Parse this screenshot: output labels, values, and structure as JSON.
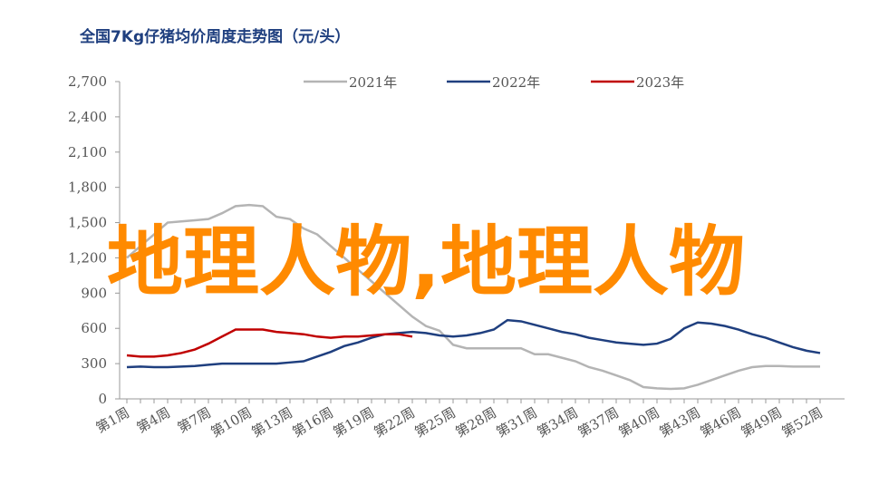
{
  "chart_data": {
    "type": "line",
    "title": "全国7Kg仔猪均价周度走势图（元/头）",
    "annotation": "地理人物,地理人物",
    "categories": [
      "第1周",
      null,
      null,
      "第4周",
      null,
      null,
      "第7周",
      null,
      null,
      "第10周",
      null,
      null,
      "第13周",
      null,
      null,
      "第16周",
      null,
      null,
      "第19周",
      null,
      null,
      "第22周",
      null,
      null,
      "第25周",
      null,
      null,
      "第28周",
      null,
      null,
      "第31周",
      null,
      null,
      "第34周",
      null,
      null,
      "第37周",
      null,
      null,
      "第40周",
      null,
      null,
      "第43周",
      null,
      null,
      "第46周",
      null,
      null,
      "第49周",
      null,
      null,
      "第52周"
    ],
    "series": [
      {
        "name": "2021年",
        "color": "#b4b4b4",
        "values": [
          1200,
          1300,
          1400,
          1500,
          1510,
          1520,
          1530,
          1580,
          1640,
          1650,
          1640,
          1550,
          1530,
          1450,
          1400,
          1300,
          1200,
          1100,
          1000,
          900,
          800,
          700,
          620,
          580,
          460,
          430,
          430,
          430,
          430,
          430,
          380,
          380,
          350,
          320,
          270,
          240,
          200,
          160,
          100,
          90,
          85,
          90,
          120,
          160,
          200,
          240,
          270,
          280,
          280,
          275,
          275,
          275
        ]
      },
      {
        "name": "2022年",
        "color": "#1f3f7f",
        "values": [
          270,
          275,
          270,
          270,
          275,
          280,
          290,
          300,
          300,
          300,
          300,
          300,
          310,
          320,
          360,
          400,
          450,
          480,
          520,
          550,
          560,
          570,
          560,
          540,
          530,
          540,
          560,
          590,
          670,
          660,
          630,
          600,
          570,
          550,
          520,
          500,
          480,
          470,
          460,
          470,
          510,
          600,
          650,
          640,
          620,
          590,
          550,
          520,
          480,
          440,
          410,
          390
        ]
      },
      {
        "name": "2023年",
        "color": "#c00000",
        "values": [
          370,
          360,
          360,
          370,
          390,
          420,
          470,
          530,
          590,
          590,
          590,
          570,
          560,
          550,
          530,
          520,
          530,
          530,
          540,
          550,
          550,
          530,
          null,
          null,
          null,
          null,
          null,
          null,
          null,
          null,
          null,
          null,
          null,
          null,
          null,
          null,
          null,
          null,
          null,
          null,
          null,
          null,
          null,
          null,
          null,
          null,
          null,
          null,
          null,
          null,
          null,
          null
        ]
      }
    ],
    "ylim": [
      0,
      2700
    ],
    "yticks": [
      0,
      300,
      600,
      900,
      {
        "value": 1200,
        "label": "1,200"
      },
      {
        "value": 1500,
        "label": "1,500"
      },
      {
        "value": 1800,
        "label": "1,800"
      },
      {
        "value": 2100,
        "label": "2,100"
      },
      {
        "value": 2400,
        "label": "2,400"
      },
      {
        "value": 2700,
        "label": "2,700"
      }
    ],
    "legend": "top"
  }
}
